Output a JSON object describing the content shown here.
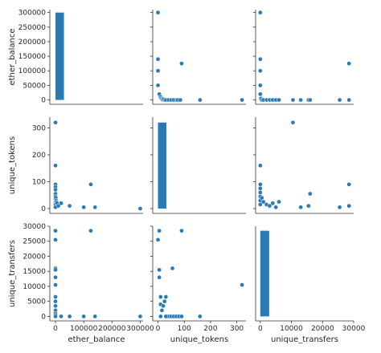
{
  "colors": {
    "accent": "#2a7ab5",
    "marker_edge": "#ffffff",
    "axis": "#333333",
    "text": "#262626"
  },
  "chart_data": {
    "type": "scatter",
    "layout": "pairplot",
    "variables": [
      "ether_balance",
      "unique_tokens",
      "unique_transfers"
    ],
    "grid": false,
    "panels": [
      {
        "row": 0,
        "col": 0,
        "kind": "hist",
        "ylabel": "ether_balance",
        "xlabel": "",
        "xlim": [
          -20000,
          310000
        ],
        "ylim": [
          -15000,
          310000
        ],
        "yticks": [
          0,
          50000,
          100000,
          150000,
          200000,
          250000,
          300000
        ],
        "yticklabels": [
          "0",
          "50000",
          "100000",
          "150000",
          "200000",
          "250000",
          "300000"
        ],
        "xticks": [],
        "xticklabels": [],
        "bins": [
          {
            "x0": 0,
            "x1": 30000,
            "count": 300000
          }
        ]
      },
      {
        "row": 0,
        "col": 1,
        "kind": "scatter",
        "xlim": [
          -20,
          335
        ],
        "ylim": [
          -15000,
          310000
        ],
        "xticks": [],
        "yticks": [
          0,
          50000,
          100000,
          150000,
          200000,
          250000,
          300000
        ],
        "yticklabels": [],
        "x": [
          0,
          0,
          0,
          0,
          5,
          10,
          12,
          15,
          18,
          20,
          25,
          30,
          40,
          50,
          60,
          70,
          75,
          85,
          90,
          160,
          320
        ],
        "y": [
          300000,
          140000,
          100000,
          50000,
          20000,
          10000,
          5000,
          2000,
          1000,
          3000,
          0,
          0,
          0,
          0,
          0,
          0,
          0,
          0,
          125000,
          0,
          0
        ]
      },
      {
        "row": 0,
        "col": 2,
        "kind": "scatter",
        "xlim": [
          -1500,
          30000
        ],
        "ylim": [
          -15000,
          310000
        ],
        "xticks": [],
        "yticks": [
          0,
          50000,
          100000,
          150000,
          200000,
          250000,
          300000
        ],
        "yticklabels": [],
        "x": [
          0,
          0,
          0,
          0,
          0,
          200,
          500,
          1000,
          2000,
          3000,
          4000,
          5000,
          6000,
          10500,
          13000,
          15500,
          16000,
          25500,
          28500,
          28500
        ],
        "y": [
          300000,
          140000,
          100000,
          50000,
          20000,
          5000,
          0,
          0,
          0,
          0,
          0,
          0,
          0,
          0,
          0,
          0,
          0,
          0,
          0,
          125000
        ]
      },
      {
        "row": 1,
        "col": 0,
        "kind": "scatter",
        "ylabel": "unique_tokens",
        "xlabel": "",
        "xlim": [
          -20000,
          310000
        ],
        "ylim": [
          -18,
          340
        ],
        "yticks": [
          0,
          100,
          200,
          300
        ],
        "yticklabels": [
          "0",
          "100",
          "200",
          "300"
        ],
        "xticks": [],
        "x": [
          0,
          0,
          0,
          0,
          0,
          0,
          0,
          0,
          0,
          0,
          0,
          1000,
          2000,
          3000,
          5000,
          10000,
          20000,
          50000,
          100000,
          125000,
          140000,
          300000
        ],
        "y": [
          320,
          160,
          90,
          80,
          70,
          55,
          45,
          35,
          25,
          15,
          5,
          40,
          30,
          25,
          20,
          10,
          20,
          10,
          5,
          90,
          5,
          0
        ]
      },
      {
        "row": 1,
        "col": 1,
        "kind": "hist",
        "xlim": [
          -20,
          335
        ],
        "ylim": [
          -18,
          340
        ],
        "xticks": [],
        "yticks": [
          0,
          100,
          200,
          300
        ],
        "yticklabels": [],
        "bins": [
          {
            "x0": 0,
            "x1": 32,
            "count": 320
          }
        ]
      },
      {
        "row": 1,
        "col": 2,
        "kind": "scatter",
        "xlim": [
          -1500,
          30000
        ],
        "ylim": [
          -18,
          340
        ],
        "xticks": [],
        "yticks": [
          0,
          100,
          200,
          300
        ],
        "yticklabels": [],
        "x": [
          0,
          0,
          0,
          0,
          0,
          0,
          0,
          500,
          1000,
          2000,
          3000,
          4000,
          5000,
          6000,
          10500,
          13000,
          15500,
          16000,
          25500,
          28500,
          28500
        ],
        "y": [
          160,
          90,
          75,
          60,
          45,
          30,
          15,
          40,
          25,
          15,
          10,
          20,
          5,
          25,
          320,
          5,
          10,
          55,
          5,
          90,
          10
        ]
      },
      {
        "row": 2,
        "col": 0,
        "kind": "scatter",
        "ylabel": "unique_transfers",
        "xlabel": "ether_balance",
        "xlim": [
          -20000,
          310000
        ],
        "ylim": [
          -1500,
          30000
        ],
        "xticks": [
          0,
          100000,
          200000,
          300000
        ],
        "xticklabels": [
          "0",
          "100000",
          "200000",
          "300000"
        ],
        "yticks": [
          0,
          5000,
          10000,
          15000,
          20000,
          25000,
          30000
        ],
        "yticklabels": [
          "0",
          "5000",
          "10000",
          "15000",
          "20000",
          "25000",
          "30000"
        ],
        "x": [
          0,
          0,
          0,
          0,
          0,
          0,
          0,
          0,
          0,
          0,
          0,
          0,
          0,
          20000,
          50000,
          100000,
          125000,
          140000,
          300000
        ],
        "y": [
          28500,
          25500,
          16000,
          15500,
          13000,
          10500,
          6500,
          5000,
          3500,
          2000,
          1000,
          500,
          0,
          0,
          0,
          0,
          28500,
          0,
          0
        ]
      },
      {
        "row": 2,
        "col": 1,
        "kind": "scatter",
        "xlabel": "unique_tokens",
        "xlim": [
          -20,
          335
        ],
        "ylim": [
          -1500,
          30000
        ],
        "xticks": [
          0,
          100,
          200,
          300
        ],
        "xticklabels": [
          "0",
          "100",
          "200",
          "300"
        ],
        "yticks": [
          0,
          5000,
          10000,
          15000,
          20000,
          25000,
          30000
        ],
        "yticklabels": [],
        "x": [
          0,
          5,
          5,
          5,
          10,
          10,
          15,
          20,
          25,
          30,
          40,
          50,
          55,
          60,
          70,
          80,
          90,
          10,
          30,
          160,
          320,
          90
        ],
        "y": [
          25500,
          28500,
          15500,
          13000,
          6500,
          4000,
          2000,
          3500,
          5000,
          6500,
          0,
          0,
          16000,
          0,
          0,
          0,
          0,
          0,
          0,
          0,
          10500,
          28500
        ]
      },
      {
        "row": 2,
        "col": 2,
        "kind": "hist",
        "xlabel": "unique_transfers",
        "xlim": [
          -1500,
          30000
        ],
        "ylim": [
          -1500,
          30000
        ],
        "xticks": [
          0,
          10000,
          20000,
          30000
        ],
        "xticklabels": [
          "0",
          "10000",
          "20000",
          "30000"
        ],
        "yticks": [],
        "yticklabels": [],
        "bins": [
          {
            "x0": 0,
            "x1": 2850,
            "count": 28500
          }
        ]
      }
    ]
  }
}
